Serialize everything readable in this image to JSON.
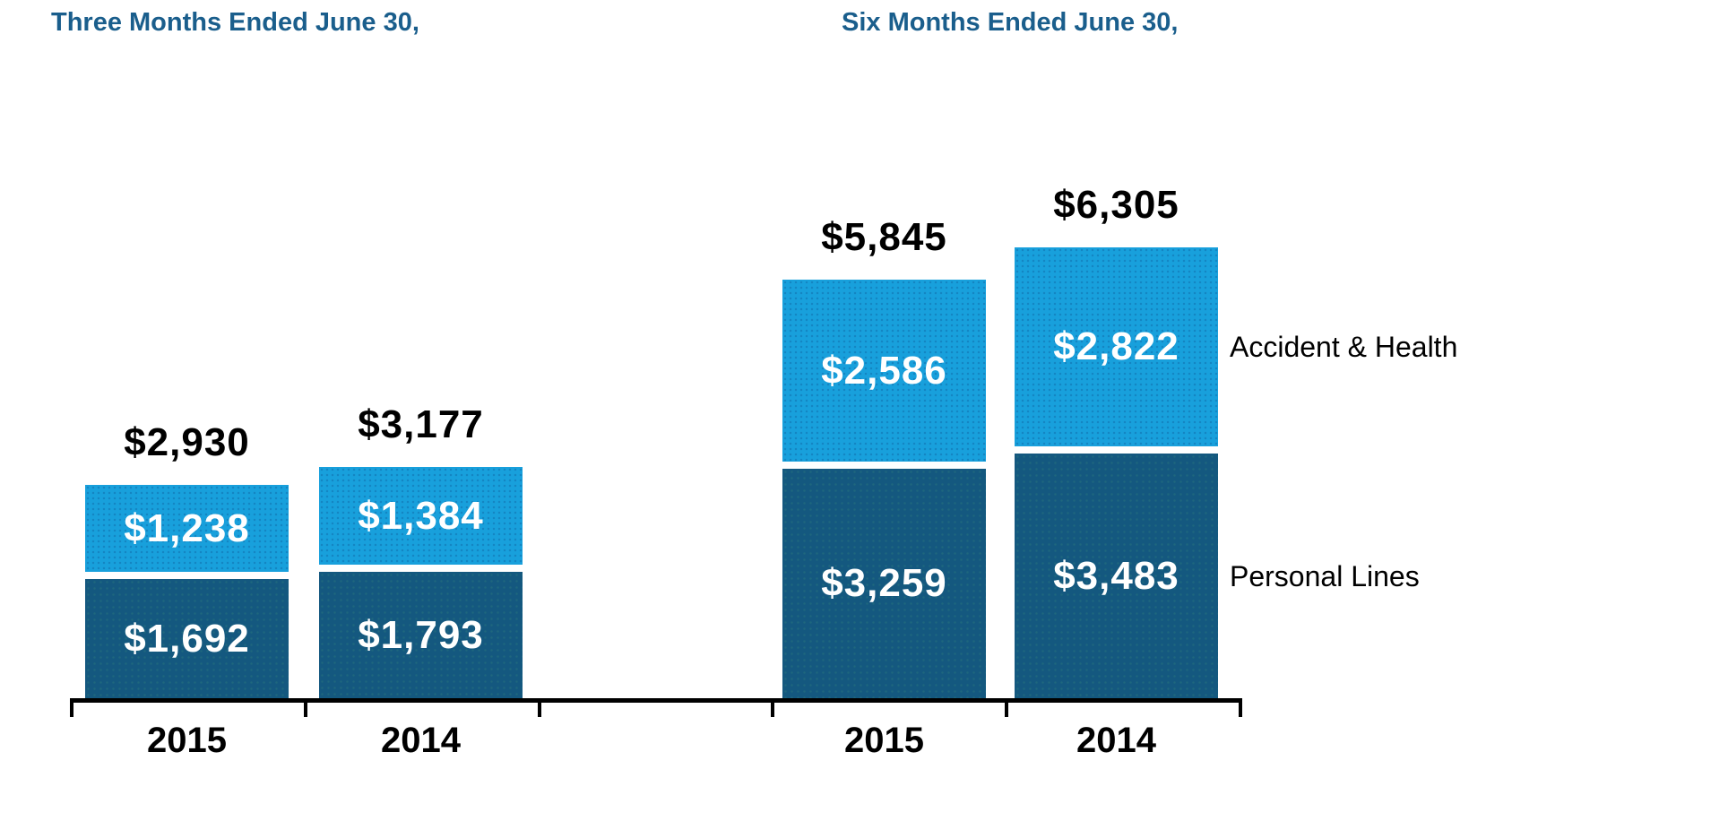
{
  "style": {
    "background": "#FFFFFF",
    "title_color": "#1A5E8C",
    "axis_color": "#000000",
    "total_label_color": "#000000",
    "value_label_color": "#FFFFFF",
    "legend_text_color": "#000000"
  },
  "chart_data": {
    "type": "bar",
    "stacked": true,
    "grid": false,
    "y_axis_visible": false,
    "series": [
      {
        "name": "Personal Lines",
        "color": "#14587F"
      },
      {
        "name": "Accident & Health",
        "color": "#18A0DC"
      }
    ],
    "legend": {
      "position": "right",
      "entries": [
        "Accident & Health",
        "Personal Lines"
      ]
    },
    "groups": [
      {
        "title": "Three Months Ended June 30,",
        "categories": [
          "2015",
          "2014"
        ],
        "bars": [
          {
            "category": "2015",
            "total": 2930,
            "total_label": "$2,930",
            "segments": [
              {
                "series": "Personal Lines",
                "value": 1692,
                "label": "$1,692"
              },
              {
                "series": "Accident & Health",
                "value": 1238,
                "label": "$1,238"
              }
            ]
          },
          {
            "category": "2014",
            "total": 3177,
            "total_label": "$3,177",
            "segments": [
              {
                "series": "Personal Lines",
                "value": 1793,
                "label": "$1,793"
              },
              {
                "series": "Accident & Health",
                "value": 1384,
                "label": "$1,384"
              }
            ]
          }
        ]
      },
      {
        "title": "Six Months Ended June 30,",
        "categories": [
          "2015",
          "2014"
        ],
        "bars": [
          {
            "category": "2015",
            "total": 5845,
            "total_label": "$5,845",
            "segments": [
              {
                "series": "Personal Lines",
                "value": 3259,
                "label": "$3,259"
              },
              {
                "series": "Accident & Health",
                "value": 2586,
                "label": "$2,586"
              }
            ]
          },
          {
            "category": "2014",
            "total": 6305,
            "total_label": "$6,305",
            "segments": [
              {
                "series": "Personal Lines",
                "value": 3483,
                "label": "$3,483"
              },
              {
                "series": "Accident & Health",
                "value": 2822,
                "label": "$2,822"
              }
            ]
          }
        ]
      }
    ]
  }
}
